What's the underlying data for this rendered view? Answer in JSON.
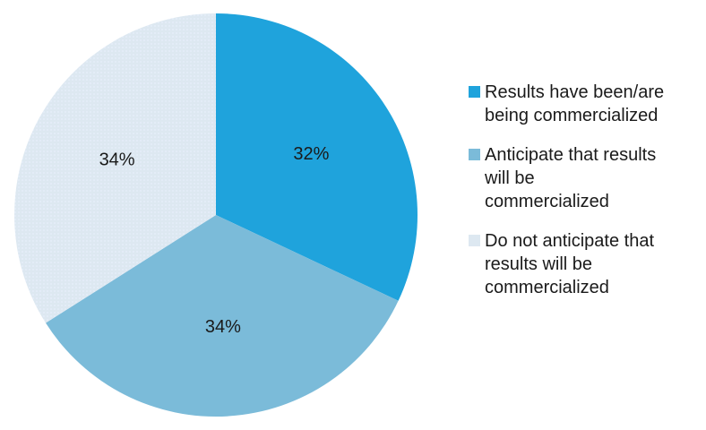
{
  "chart_data": {
    "type": "pie",
    "title": "",
    "categories": [
      "Results have been/are\nbeing commercialized",
      "Anticipate that results\nwill be\ncommercialized",
      "Do not anticipate that\nresults will be\ncommercialized"
    ],
    "values": [
      32,
      34,
      34
    ],
    "labels": [
      "32%",
      "34%",
      "34%"
    ],
    "colors": [
      "#1fa3dc",
      "#7bbbd9",
      "#dde8f1"
    ],
    "start_angle_deg": 0,
    "direction": "clockwise",
    "legend_position": "right"
  }
}
